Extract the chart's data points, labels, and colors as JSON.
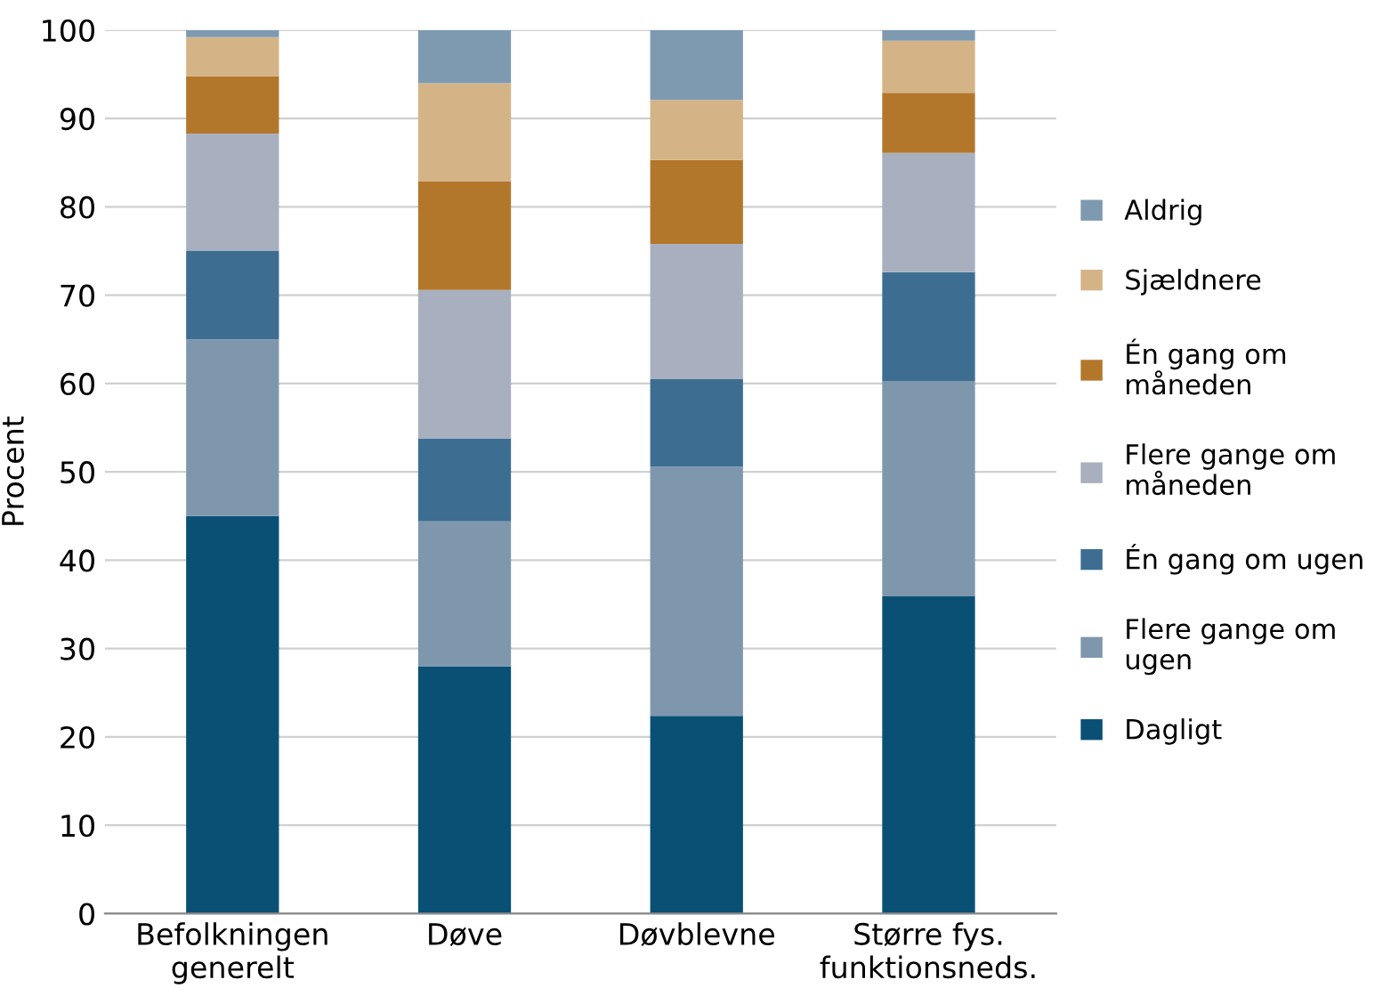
{
  "chart_data": {
    "type": "bar",
    "stacked": true,
    "ylabel": "Procent",
    "categories": [
      "Befolkningen\ngenerelt",
      "Døve",
      "Døvblevne",
      "Større fys.\nfunktionsneds."
    ],
    "series": [
      {
        "name": "Dagligt",
        "color": "#0a5075",
        "values": [
          45,
          28,
          22.4,
          35.9
        ]
      },
      {
        "name": "Flere gange om\nugen",
        "color": "#7f97ad",
        "values": [
          20,
          16.4,
          28.2,
          24.4
        ]
      },
      {
        "name": "Én gang om ugen",
        "color": "#3d6e92",
        "values": [
          10,
          9.4,
          9.9,
          12.3
        ]
      },
      {
        "name": "Flere gange om\nmåneden",
        "color": "#a8b0bf",
        "values": [
          13.3,
          16.8,
          15.3,
          13.5
        ]
      },
      {
        "name": "Én gang om\nmåneden",
        "color": "#b3772b",
        "values": [
          6.5,
          12.3,
          9.5,
          6.8
        ]
      },
      {
        "name": "Sjældnere",
        "color": "#d4b486",
        "values": [
          4.4,
          11.1,
          6.8,
          5.9
        ]
      },
      {
        "name": "Aldrig",
        "color": "#7d9ab0",
        "values": [
          0.8,
          6.0,
          7.9,
          1.2
        ]
      }
    ],
    "ylim": [
      0,
      100
    ],
    "yticks": [
      0,
      10,
      20,
      30,
      40,
      50,
      60,
      70,
      80,
      90,
      100
    ],
    "grid": "y",
    "legend": "right"
  }
}
